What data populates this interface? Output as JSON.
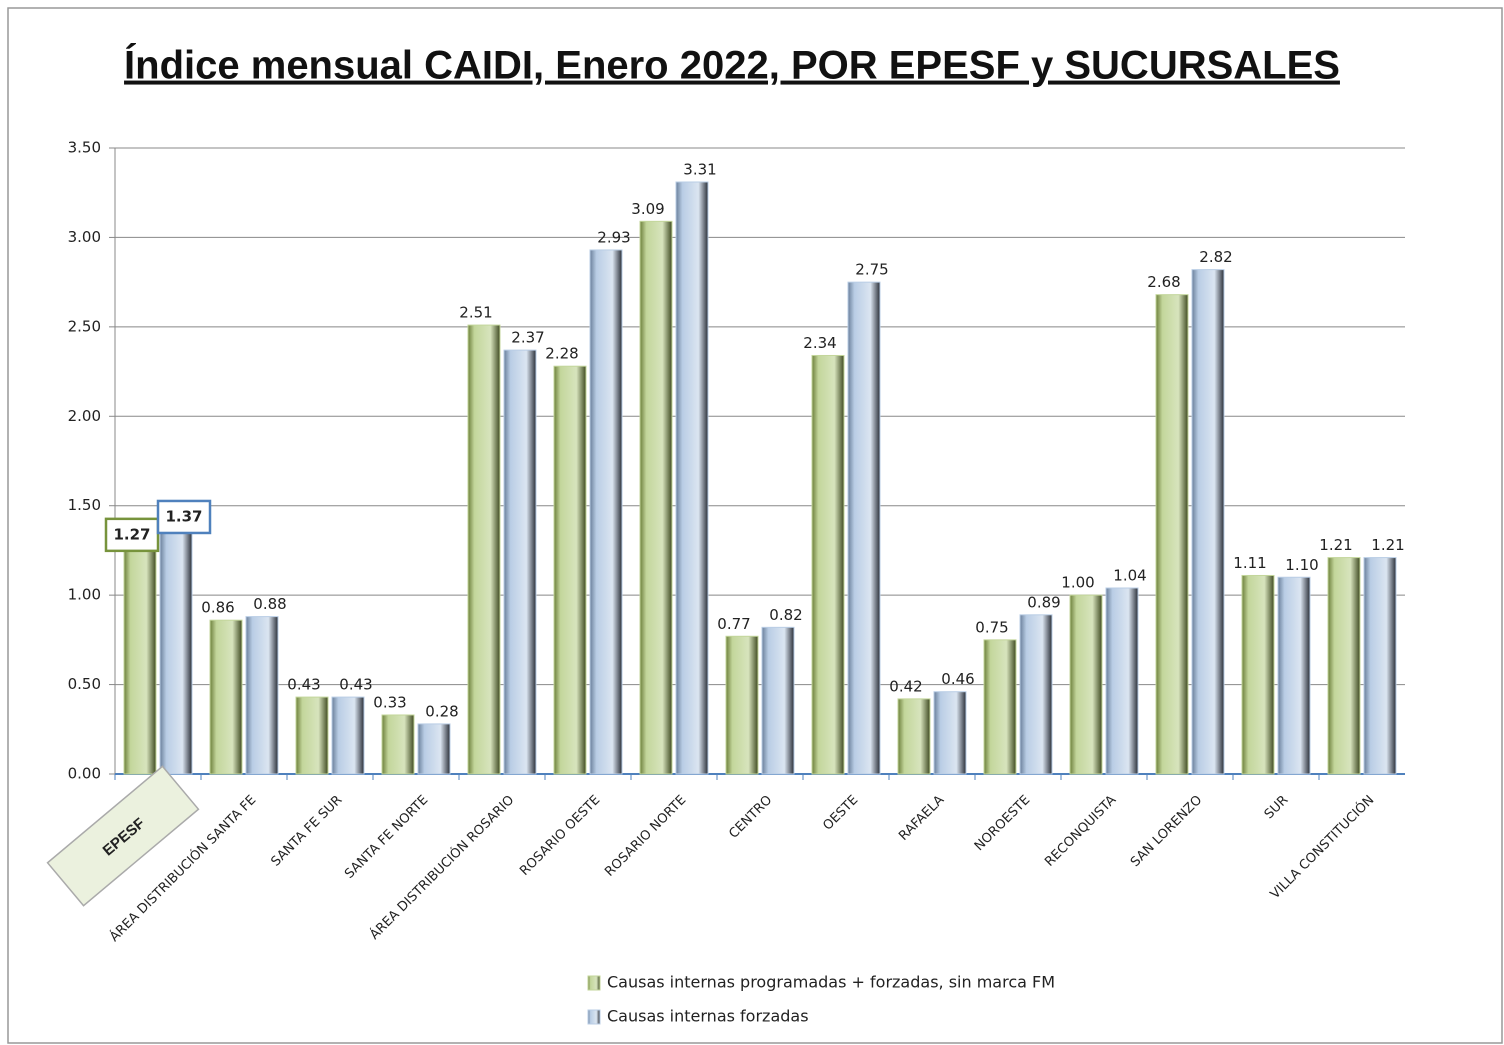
{
  "chart_data": {
    "type": "bar",
    "title": "Índice mensual CAIDI, Enero 2022,  POR EPESF y SUCURSALES",
    "categories": [
      "EPESF",
      "ÁREA DISTRIBUCIÓN SANTA FE",
      "SANTA FE SUR",
      "SANTA FE NORTE",
      "ÁREA DISTRIBUCIÓN ROSARIO",
      "ROSARIO OESTE",
      "ROSARIO NORTE",
      "CENTRO",
      "OESTE",
      "RAFAELA",
      "NOROESTE",
      "RECONQUISTA",
      "SAN LORENZO",
      "SUR",
      "VILLA CONSTITUCIÓN"
    ],
    "series": [
      {
        "name": "Causas internas programadas + forzadas,  sin marca FM",
        "color": "#c3d69b",
        "values": [
          1.27,
          0.86,
          0.43,
          0.33,
          2.51,
          2.28,
          3.09,
          0.77,
          2.34,
          0.42,
          0.75,
          1.0,
          2.68,
          1.11,
          1.21
        ],
        "value_labels": [
          "1.27",
          "0.86",
          "0.43",
          "0.33",
          "2.51",
          "2.28",
          "3.09",
          "0.77",
          "2.34",
          "0.42",
          "0.75",
          "1.00",
          "2.68",
          "1.11",
          "1.21"
        ]
      },
      {
        "name": "Causas internas forzadas",
        "color": "#b9cde5",
        "values": [
          1.37,
          0.88,
          0.43,
          0.28,
          2.37,
          2.93,
          3.31,
          0.82,
          2.75,
          0.46,
          0.89,
          1.04,
          2.82,
          1.1,
          1.21
        ],
        "value_labels": [
          "1.37",
          "0.88",
          "0.43",
          "0.28",
          "2.37",
          "2.93",
          "3.31",
          "0.82",
          "2.75",
          "0.46",
          "0.89",
          "1.04",
          "2.82",
          "1.10",
          "1.21"
        ]
      }
    ],
    "ylim": [
      0,
      3.5
    ],
    "yticks": [
      {
        "value": 0,
        "label": "0.00"
      },
      {
        "value": 0.5,
        "label": "0.50"
      },
      {
        "value": 1,
        "label": "1.00"
      },
      {
        "value": 1.5,
        "label": "1.50"
      },
      {
        "value": 2,
        "label": "2.00"
      },
      {
        "value": 2.5,
        "label": "2.50"
      },
      {
        "value": 3,
        "label": "3.00"
      },
      {
        "value": 3.5,
        "label": "3.50"
      }
    ],
    "grid": true
  }
}
